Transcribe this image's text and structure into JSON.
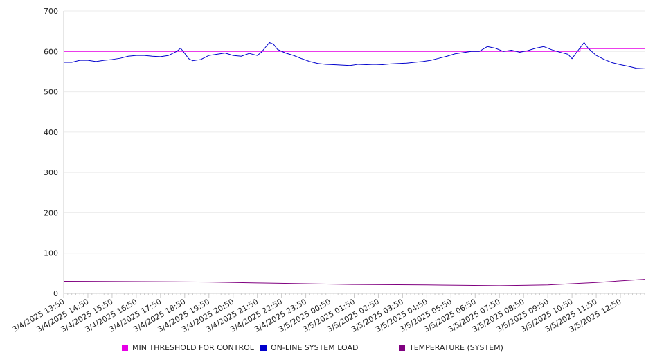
{
  "chart_data": {
    "type": "line",
    "title": "",
    "xlabel": "",
    "ylabel": "",
    "ylim": [
      0,
      700
    ],
    "y_ticks": [
      0,
      100,
      200,
      300,
      400,
      500,
      600,
      700
    ],
    "x_tick_labels": [
      "3/4/2025 13:50",
      "3/4/2025 14:50",
      "3/4/2025 15:50",
      "3/4/2025 16:50",
      "3/4/2025 17:50",
      "3/4/2025 18:50",
      "3/4/2025 19:50",
      "3/4/2025 20:50",
      "3/4/2025 21:50",
      "3/4/2025 22:50",
      "3/4/2025 23:50",
      "3/5/2025 00:50",
      "3/5/2025 01:50",
      "3/5/2025 02:50",
      "3/5/2025 03:50",
      "3/5/2025 04:50",
      "3/5/2025 05:50",
      "3/5/2025 06:50",
      "3/5/2025 07:50",
      "3/5/2025 08:50",
      "3/5/2025 09:50",
      "3/5/2025 10:50",
      "3/5/2025 11:50",
      "3/5/2025 12:50"
    ],
    "x_range": [
      "3/4/2025 13:50",
      "3/5/2025 13:50"
    ],
    "grid": "horizontal",
    "legend_position": "bottom",
    "series": [
      {
        "name": "MIN THRESHOLD FOR CONTROL",
        "color": "#e600e6",
        "points": [
          [
            "3/4/2025 13:50",
            600
          ],
          [
            "3/5/2025 11:10",
            600
          ],
          [
            "3/5/2025 11:10",
            607
          ],
          [
            "3/5/2025 13:50",
            607
          ]
        ]
      },
      {
        "name": "ON-LINE SYSTEM LOAD",
        "color": "#0000cc",
        "points": [
          [
            "3/4/2025 13:50",
            573
          ],
          [
            "3/4/2025 14:10",
            573
          ],
          [
            "3/4/2025 14:30",
            578
          ],
          [
            "3/4/2025 14:50",
            578
          ],
          [
            "3/4/2025 15:10",
            575
          ],
          [
            "3/4/2025 15:30",
            578
          ],
          [
            "3/4/2025 15:50",
            580
          ],
          [
            "3/4/2025 16:10",
            583
          ],
          [
            "3/4/2025 16:30",
            588
          ],
          [
            "3/4/2025 16:50",
            590
          ],
          [
            "3/4/2025 17:10",
            590
          ],
          [
            "3/4/2025 17:30",
            588
          ],
          [
            "3/4/2025 17:50",
            587
          ],
          [
            "3/4/2025 18:10",
            590
          ],
          [
            "3/4/2025 18:30",
            600
          ],
          [
            "3/4/2025 18:40",
            608
          ],
          [
            "3/4/2025 18:50",
            595
          ],
          [
            "3/4/2025 19:00",
            582
          ],
          [
            "3/4/2025 19:10",
            577
          ],
          [
            "3/4/2025 19:30",
            580
          ],
          [
            "3/4/2025 19:50",
            590
          ],
          [
            "3/4/2025 20:10",
            593
          ],
          [
            "3/4/2025 20:30",
            596
          ],
          [
            "3/4/2025 20:50",
            590
          ],
          [
            "3/4/2025 21:10",
            588
          ],
          [
            "3/4/2025 21:30",
            595
          ],
          [
            "3/4/2025 21:50",
            590
          ],
          [
            "3/4/2025 22:00",
            598
          ],
          [
            "3/4/2025 22:20",
            622
          ],
          [
            "3/4/2025 22:30",
            618
          ],
          [
            "3/4/2025 22:40",
            605
          ],
          [
            "3/4/2025 23:00",
            596
          ],
          [
            "3/4/2025 23:20",
            590
          ],
          [
            "3/4/2025 23:40",
            582
          ],
          [
            "3/5/2025 00:00",
            575
          ],
          [
            "3/5/2025 00:20",
            570
          ],
          [
            "3/5/2025 00:40",
            568
          ],
          [
            "3/5/2025 01:00",
            567
          ],
          [
            "3/5/2025 01:20",
            566
          ],
          [
            "3/5/2025 01:40",
            565
          ],
          [
            "3/5/2025 02:00",
            568
          ],
          [
            "3/5/2025 02:20",
            567
          ],
          [
            "3/5/2025 02:40",
            568
          ],
          [
            "3/5/2025 03:00",
            567
          ],
          [
            "3/5/2025 03:20",
            569
          ],
          [
            "3/5/2025 03:40",
            570
          ],
          [
            "3/5/2025 04:00",
            571
          ],
          [
            "3/5/2025 04:20",
            573
          ],
          [
            "3/5/2025 04:40",
            575
          ],
          [
            "3/5/2025 05:00",
            578
          ],
          [
            "3/5/2025 05:20",
            583
          ],
          [
            "3/5/2025 05:40",
            588
          ],
          [
            "3/5/2025 06:00",
            594
          ],
          [
            "3/5/2025 06:20",
            597
          ],
          [
            "3/5/2025 06:40",
            600
          ],
          [
            "3/5/2025 07:00",
            600
          ],
          [
            "3/5/2025 07:20",
            612
          ],
          [
            "3/5/2025 07:40",
            608
          ],
          [
            "3/5/2025 08:00",
            600
          ],
          [
            "3/5/2025 08:20",
            603
          ],
          [
            "3/5/2025 08:40",
            598
          ],
          [
            "3/5/2025 09:00",
            602
          ],
          [
            "3/5/2025 09:20",
            608
          ],
          [
            "3/5/2025 09:40",
            612
          ],
          [
            "3/5/2025 10:00",
            604
          ],
          [
            "3/5/2025 10:20",
            598
          ],
          [
            "3/5/2025 10:40",
            593
          ],
          [
            "3/5/2025 10:50",
            582
          ],
          [
            "3/5/2025 11:00",
            596
          ],
          [
            "3/5/2025 11:20",
            622
          ],
          [
            "3/5/2025 11:30",
            608
          ],
          [
            "3/5/2025 11:50",
            590
          ],
          [
            "3/5/2025 12:10",
            580
          ],
          [
            "3/5/2025 12:30",
            572
          ],
          [
            "3/5/2025 12:50",
            567
          ],
          [
            "3/5/2025 13:10",
            563
          ],
          [
            "3/5/2025 13:30",
            558
          ],
          [
            "3/5/2025 13:50",
            557
          ]
        ]
      },
      {
        "name": "TEMPERATURE (SYSTEM)",
        "color": "#800080",
        "points": [
          [
            "3/4/2025 13:50",
            30
          ],
          [
            "3/4/2025 17:50",
            29
          ],
          [
            "3/4/2025 19:50",
            28
          ],
          [
            "3/4/2025 21:50",
            26
          ],
          [
            "3/4/2025 23:50",
            24
          ],
          [
            "3/5/2025 01:50",
            22
          ],
          [
            "3/5/2025 04:50",
            21
          ],
          [
            "3/5/2025 07:50",
            19
          ],
          [
            "3/5/2025 09:50",
            21
          ],
          [
            "3/5/2025 11:50",
            27
          ],
          [
            "3/5/2025 12:50",
            31
          ],
          [
            "3/5/2025 13:50",
            35
          ]
        ]
      }
    ]
  }
}
